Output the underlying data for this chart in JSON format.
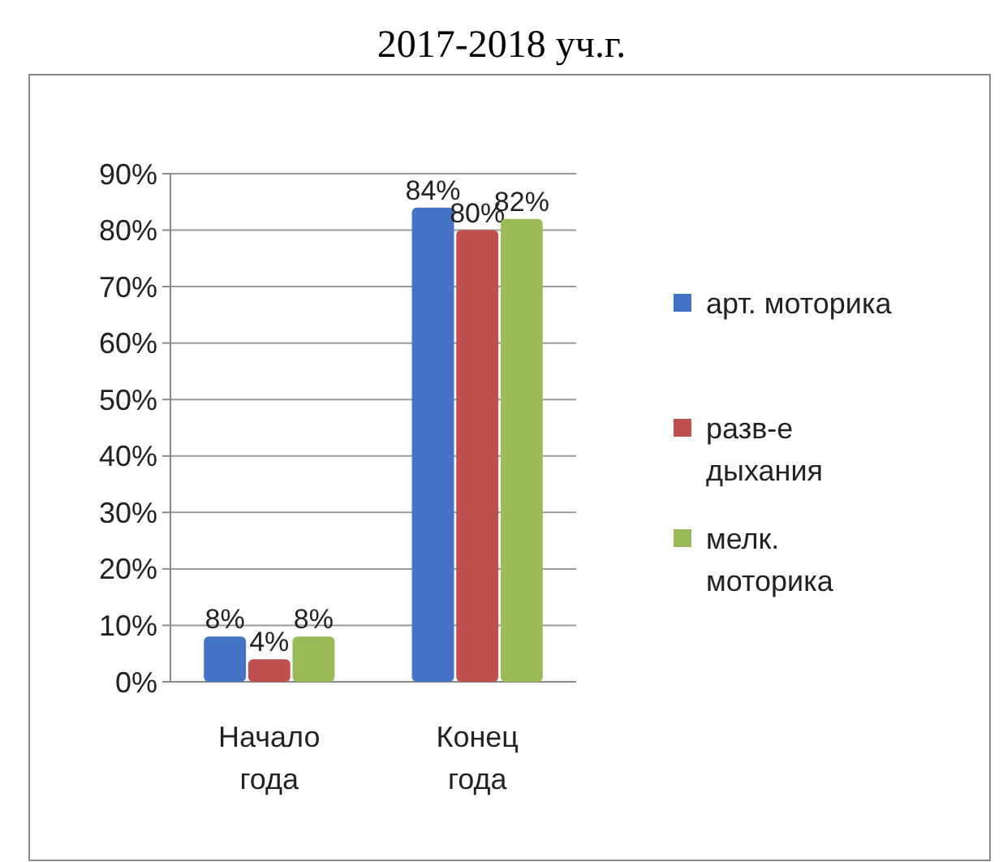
{
  "chart_data": {
    "type": "bar",
    "title": "2017-2018 уч.г.",
    "categories": [
      "Начало года",
      "Конец года"
    ],
    "series": [
      {
        "name": "арт. моторика",
        "color": "#4472c4",
        "values": [
          8,
          84
        ],
        "value_labels": [
          "8%",
          "84%"
        ]
      },
      {
        "name": "разв-е дыхания",
        "color": "#c0504d",
        "values": [
          4,
          80
        ],
        "value_labels": [
          "4%",
          "80%"
        ]
      },
      {
        "name": "мелк. моторика",
        "color": "#9bbb59",
        "values": [
          8,
          82
        ],
        "value_labels": [
          "8%",
          "82%"
        ]
      }
    ],
    "ylim": [
      0,
      90
    ],
    "yticks": [
      {
        "value": 0,
        "label": "0%"
      },
      {
        "value": 10,
        "label": "10%"
      },
      {
        "value": 20,
        "label": "20%"
      },
      {
        "value": 30,
        "label": "30%"
      },
      {
        "value": 40,
        "label": "40%"
      },
      {
        "value": 50,
        "label": "50%"
      },
      {
        "value": 60,
        "label": "60%"
      },
      {
        "value": 70,
        "label": "70%"
      },
      {
        "value": 80,
        "label": "80%"
      },
      {
        "value": 90,
        "label": "90%"
      }
    ],
    "grid": "y",
    "legend": "right"
  }
}
